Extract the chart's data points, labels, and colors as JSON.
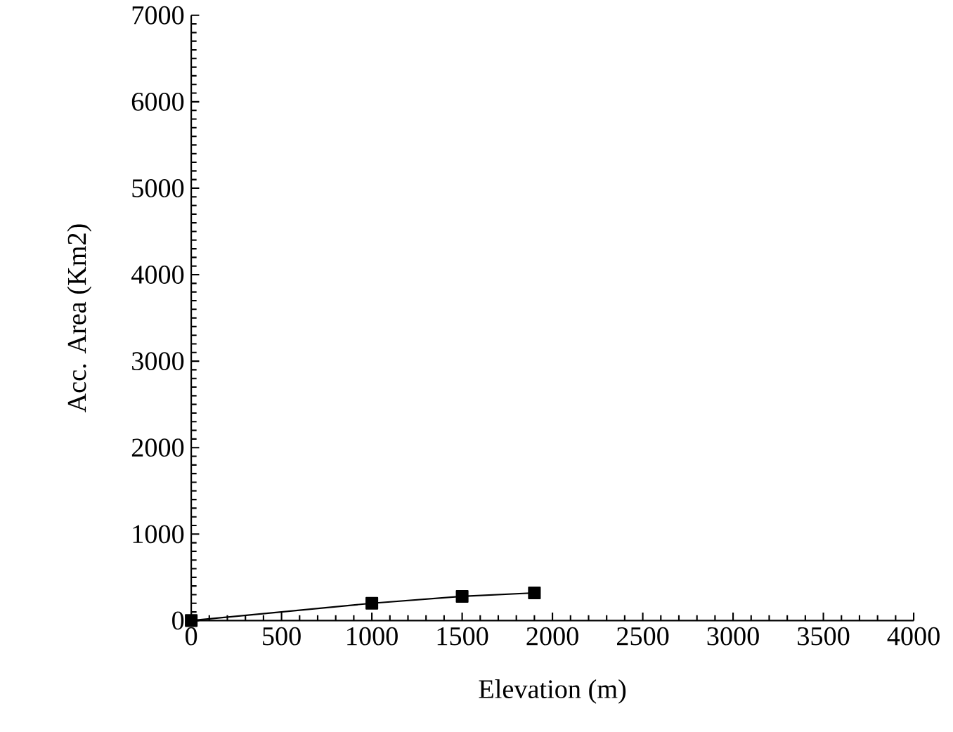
{
  "chart_data": {
    "type": "line",
    "xlabel": "Elevation (m)",
    "ylabel": "Acc. Area (Km2)",
    "x": [
      0,
      1000,
      1500,
      1900
    ],
    "series": [
      {
        "color": "#000000",
        "values": [
          0,
          200,
          280,
          320
        ]
      }
    ],
    "xlim": [
      0,
      4000
    ],
    "xticks": [
      0,
      500,
      1000,
      1500,
      2000,
      2500,
      3000,
      3500,
      4000
    ],
    "ylim": [
      0,
      7000
    ],
    "yticks": [
      0,
      1000,
      2000,
      3000,
      4000,
      5000,
      6000,
      7000
    ],
    "marker": "square",
    "line_style": "solid",
    "grid": false
  }
}
